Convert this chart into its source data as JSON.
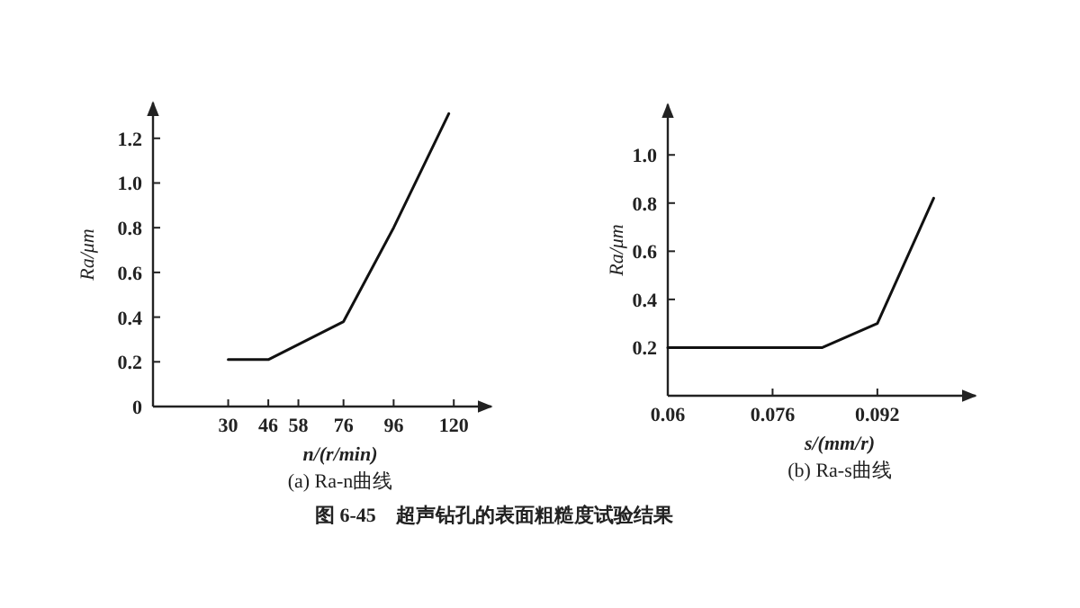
{
  "chart_data": [
    {
      "type": "line",
      "title": "(a) Ra-n曲线",
      "xlabel": "n/(r/min)",
      "ylabel": "Ra/μm",
      "x": [
        30,
        46,
        76,
        96,
        118
      ],
      "series": [
        {
          "color": "#111111",
          "values": [
            0.21,
            0.21,
            0.38,
            0.8,
            1.31
          ]
        }
      ],
      "xlim": [
        0,
        135
      ],
      "xticks": [
        30,
        46,
        58,
        76,
        96,
        120
      ],
      "ylim": [
        0,
        1.36
      ],
      "yticks": [
        0,
        0.2,
        0.4,
        0.6,
        0.8,
        {
          "value": 1,
          "label": "1.0"
        },
        1.2
      ],
      "grid": false,
      "marker": "none",
      "line_style": "solid",
      "annotations": [
        "图 6-45　超声钻孔的表面粗糙度试验结果"
      ]
    },
    {
      "type": "line",
      "title": "(b) Ra-s曲线",
      "xlabel": "s/(mm/r)",
      "ylabel": "Ra/μm",
      "x": [
        0.06,
        0.0836,
        0.092,
        0.1006
      ],
      "series": [
        {
          "color": "#111111",
          "values": [
            0.2,
            0.2,
            0.3,
            0.82
          ]
        }
      ],
      "xlim": [
        0.06,
        0.107
      ],
      "xticks": [
        0.06,
        0.076,
        0.092
      ],
      "ylim": [
        0,
        1.21
      ],
      "yticks": [
        0.2,
        0.4,
        0.6,
        0.8,
        {
          "value": 1,
          "label": "1.0"
        }
      ],
      "grid": false,
      "marker": "none",
      "line_style": "solid"
    }
  ]
}
